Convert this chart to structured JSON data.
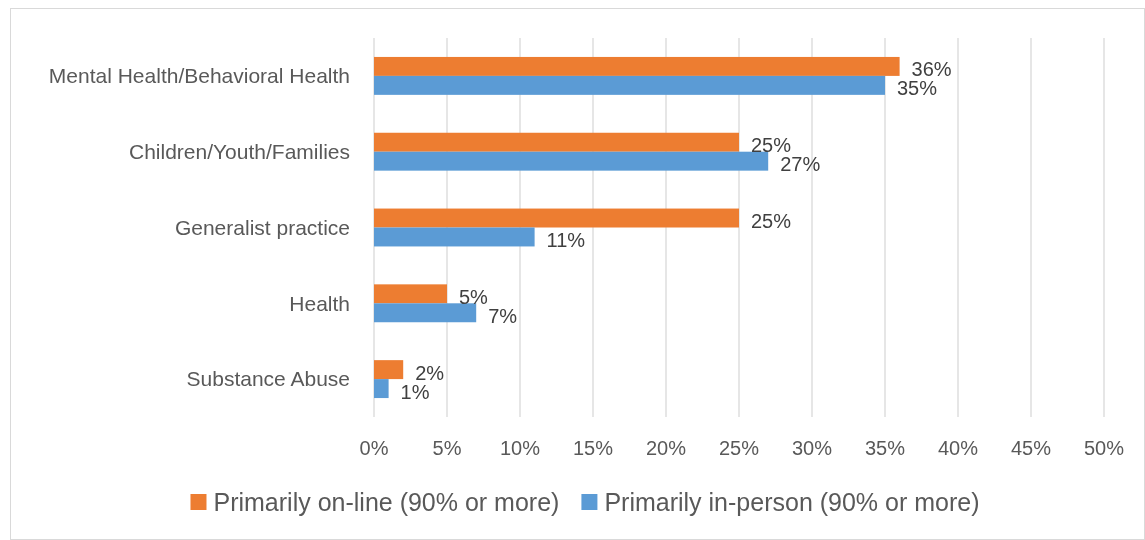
{
  "chart_data": {
    "type": "bar",
    "orientation": "horizontal",
    "categories": [
      "Mental Health/Behavioral Health",
      "Children/Youth/Families",
      "Generalist practice",
      "Health",
      "Substance Abuse"
    ],
    "series": [
      {
        "name": "Primarily on-line (90% or more)",
        "color": "#ed7d31",
        "values": [
          36,
          25,
          25,
          5,
          2
        ],
        "value_labels": [
          "36%",
          "25%",
          "25%",
          "5%",
          "2%"
        ]
      },
      {
        "name": "Primarily in-person (90% or more)",
        "color": "#5b9bd5",
        "values": [
          35,
          27,
          11,
          7,
          1
        ],
        "value_labels": [
          "35%",
          "27%",
          "11%",
          "7%",
          "1%"
        ]
      }
    ],
    "xlim": [
      0,
      50
    ],
    "xticks": [
      {
        "value": 0,
        "label": "0%"
      },
      {
        "value": 5,
        "label": "5%"
      },
      {
        "value": 10,
        "label": "10%"
      },
      {
        "value": 15,
        "label": "15%"
      },
      {
        "value": 20,
        "label": "20%"
      },
      {
        "value": 25,
        "label": "25%"
      },
      {
        "value": 30,
        "label": "30%"
      },
      {
        "value": 35,
        "label": "35%"
      },
      {
        "value": 40,
        "label": "40%"
      },
      {
        "value": 45,
        "label": "45%"
      },
      {
        "value": 50,
        "label": "50%"
      }
    ],
    "grid": "x",
    "legend": "bottom"
  }
}
